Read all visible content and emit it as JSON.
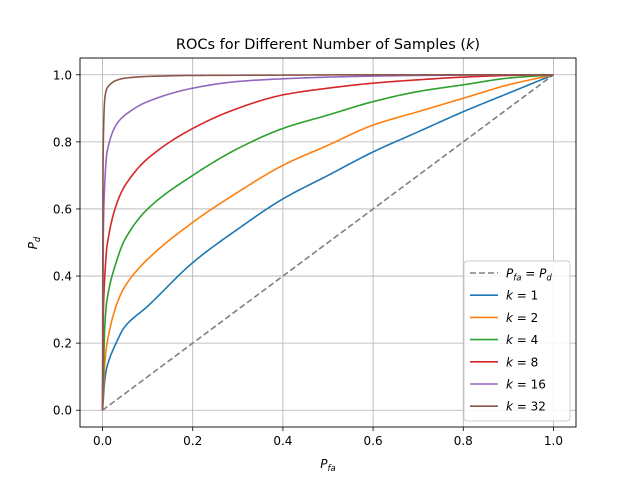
{
  "chart_data": {
    "type": "line",
    "title": "ROCs for Different Number of Samples (k)",
    "title_parts": {
      "main": "ROCs for Different Number of Samples (",
      "var": "k",
      "close": ")"
    },
    "xlabel": {
      "base": "P",
      "sub": "fa"
    },
    "ylabel": {
      "base": "P",
      "sub": "d"
    },
    "xlim": [
      -0.05,
      1.05
    ],
    "ylim": [
      -0.05,
      1.05
    ],
    "xticks": [
      "0.0",
      "0.2",
      "0.4",
      "0.6",
      "0.8",
      "1.0"
    ],
    "yticks": [
      "0.0",
      "0.2",
      "0.4",
      "0.6",
      "0.8",
      "1.0"
    ],
    "grid": true,
    "legend_position": "lower-right",
    "reference_line": {
      "name": "Pfa = Pd",
      "style": "dashed",
      "color": "#808080",
      "x": [
        0.0,
        1.0
      ],
      "y": [
        0.0,
        1.0
      ]
    },
    "series": [
      {
        "name": "k = 1",
        "k": 1,
        "color": "#1f77b4",
        "x": [
          0.0,
          0.005,
          0.01,
          0.03,
          0.05,
          0.1,
          0.2,
          0.3,
          0.4,
          0.5,
          0.6,
          0.7,
          0.8,
          0.9,
          1.0
        ],
        "y": [
          0.0,
          0.09,
          0.13,
          0.2,
          0.25,
          0.31,
          0.44,
          0.54,
          0.63,
          0.7,
          0.77,
          0.83,
          0.89,
          0.945,
          1.0
        ]
      },
      {
        "name": "k = 2",
        "k": 2,
        "color": "#ff7f0e",
        "x": [
          0.0,
          0.005,
          0.01,
          0.03,
          0.05,
          0.1,
          0.2,
          0.3,
          0.4,
          0.5,
          0.6,
          0.7,
          0.8,
          0.9,
          1.0
        ],
        "y": [
          0.0,
          0.14,
          0.2,
          0.31,
          0.37,
          0.45,
          0.56,
          0.65,
          0.73,
          0.79,
          0.85,
          0.89,
          0.93,
          0.97,
          1.0
        ]
      },
      {
        "name": "k = 4",
        "k": 4,
        "color": "#2ca02c",
        "x": [
          0.0,
          0.005,
          0.01,
          0.03,
          0.05,
          0.1,
          0.2,
          0.3,
          0.4,
          0.5,
          0.6,
          0.7,
          0.8,
          0.9,
          1.0
        ],
        "y": [
          0.0,
          0.25,
          0.33,
          0.44,
          0.51,
          0.6,
          0.7,
          0.78,
          0.84,
          0.88,
          0.92,
          0.95,
          0.97,
          0.99,
          1.0
        ]
      },
      {
        "name": "k = 8",
        "k": 8,
        "color": "#d62728",
        "x": [
          0.0,
          0.002,
          0.005,
          0.01,
          0.03,
          0.05,
          0.1,
          0.2,
          0.3,
          0.4,
          0.5,
          0.6,
          0.7,
          0.8,
          0.9,
          1.0
        ],
        "y": [
          0.0,
          0.3,
          0.4,
          0.49,
          0.61,
          0.67,
          0.75,
          0.84,
          0.9,
          0.94,
          0.96,
          0.975,
          0.985,
          0.993,
          0.998,
          1.0
        ]
      },
      {
        "name": "k = 16",
        "k": 16,
        "color": "#9467bd",
        "x": [
          0.0,
          0.002,
          0.005,
          0.01,
          0.03,
          0.05,
          0.1,
          0.2,
          0.3,
          0.4,
          0.5,
          0.6,
          0.7,
          0.8,
          0.9,
          1.0
        ],
        "y": [
          0.0,
          0.55,
          0.68,
          0.77,
          0.85,
          0.88,
          0.92,
          0.96,
          0.98,
          0.988,
          0.993,
          0.996,
          0.998,
          0.999,
          1.0,
          1.0
        ]
      },
      {
        "name": "k = 32",
        "k": 32,
        "color": "#8c564b",
        "x": [
          0.0,
          0.001,
          0.002,
          0.004,
          0.006,
          0.01,
          0.02,
          0.03,
          0.05,
          0.1,
          0.2,
          0.4,
          0.6,
          0.8,
          1.0
        ],
        "y": [
          0.0,
          0.7,
          0.82,
          0.91,
          0.94,
          0.96,
          0.975,
          0.983,
          0.99,
          0.995,
          0.998,
          0.999,
          1.0,
          1.0,
          1.0
        ]
      }
    ]
  }
}
